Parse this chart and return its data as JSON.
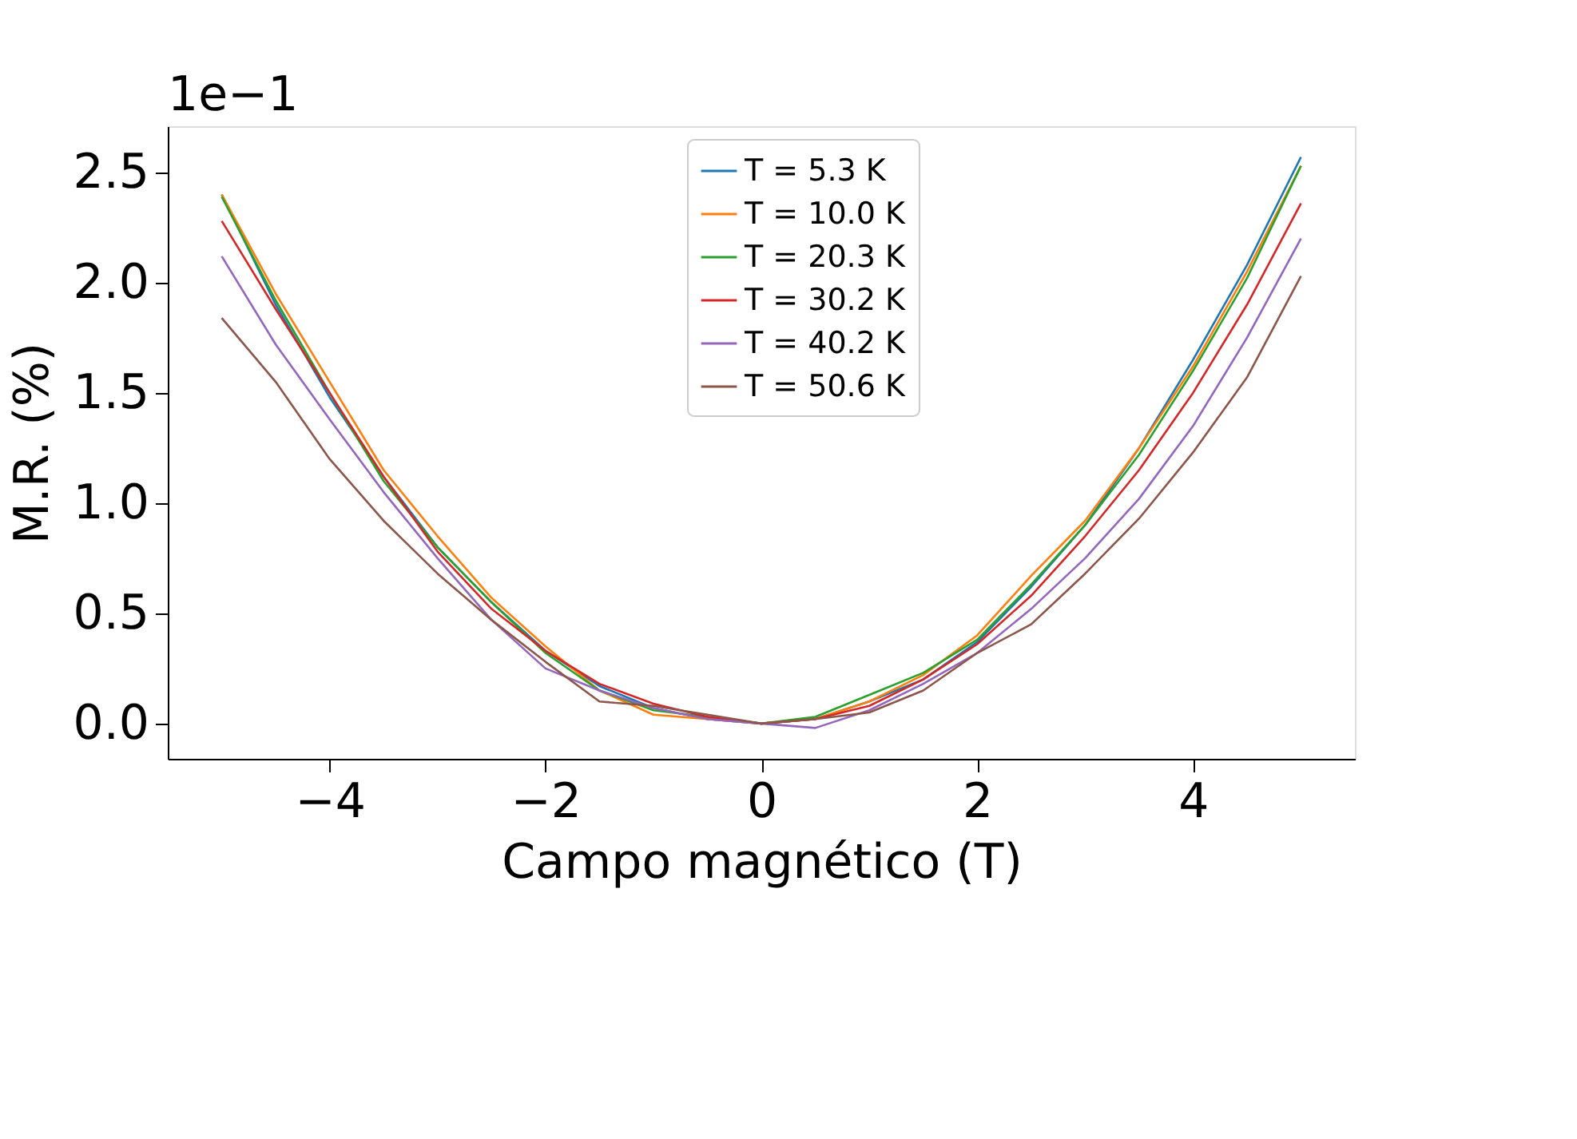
{
  "chart_data": {
    "type": "line",
    "xlabel": "Campo magnético (T)",
    "ylabel": "M.R. (%)",
    "annotations": [
      "1e−1"
    ],
    "x": [
      -5,
      -4.5,
      -4,
      -3.5,
      -3,
      -2.5,
      -2,
      -1.5,
      -1,
      -0.5,
      0,
      0.5,
      1,
      1.5,
      2,
      2.5,
      3,
      3.5,
      4,
      4.5,
      5
    ],
    "series": [
      {
        "name": "T = 5.3 K",
        "color": "#1f77b4",
        "values": [
          2.4,
          1.9,
          1.48,
          1.12,
          0.8,
          0.55,
          0.33,
          0.17,
          0.07,
          0.02,
          0.0,
          0.02,
          0.1,
          0.2,
          0.37,
          0.62,
          0.9,
          1.25,
          1.65,
          2.08,
          2.57
        ]
      },
      {
        "name": "T = 10.0 K",
        "color": "#ff7f0e",
        "values": [
          2.4,
          1.95,
          1.55,
          1.15,
          0.85,
          0.57,
          0.35,
          0.15,
          0.04,
          0.02,
          0.0,
          0.02,
          0.1,
          0.22,
          0.4,
          0.67,
          0.92,
          1.25,
          1.62,
          2.05,
          2.53
        ]
      },
      {
        "name": "T = 20.3 K",
        "color": "#2ca02c",
        "values": [
          2.39,
          1.92,
          1.5,
          1.1,
          0.8,
          0.55,
          0.32,
          0.15,
          0.06,
          0.03,
          0.0,
          0.03,
          0.13,
          0.23,
          0.38,
          0.63,
          0.9,
          1.22,
          1.6,
          2.02,
          2.53
        ]
      },
      {
        "name": "T = 30.2 K",
        "color": "#d62728",
        "values": [
          2.28,
          1.88,
          1.5,
          1.12,
          0.78,
          0.52,
          0.33,
          0.18,
          0.09,
          0.03,
          0.0,
          0.02,
          0.08,
          0.2,
          0.36,
          0.58,
          0.85,
          1.15,
          1.5,
          1.9,
          2.36
        ]
      },
      {
        "name": "T = 40.2 K",
        "color": "#9467bd",
        "values": [
          2.12,
          1.72,
          1.38,
          1.05,
          0.75,
          0.47,
          0.25,
          0.15,
          0.07,
          0.02,
          0.0,
          -0.02,
          0.06,
          0.18,
          0.32,
          0.52,
          0.75,
          1.02,
          1.35,
          1.75,
          2.2
        ]
      },
      {
        "name": "T = 50.6 K",
        "color": "#8c564b",
        "values": [
          1.84,
          1.55,
          1.2,
          0.92,
          0.68,
          0.47,
          0.28,
          0.1,
          0.08,
          0.04,
          0.0,
          0.02,
          0.05,
          0.15,
          0.32,
          0.45,
          0.68,
          0.93,
          1.23,
          1.57,
          2.03
        ]
      }
    ],
    "xlim": [
      -5.5,
      5.5
    ],
    "xticks": [
      -4,
      -2,
      0,
      2,
      4
    ],
    "ylim": [
      -0.16,
      2.71
    ],
    "yticks": [
      {
        "value": 0,
        "label": "0.0"
      },
      0.5,
      {
        "value": 1,
        "label": "1.0"
      },
      1.5,
      {
        "value": 2,
        "label": "2.0"
      },
      2.5
    ],
    "grid": false,
    "legend": "top",
    "marker": "none",
    "line_style": "solid"
  }
}
